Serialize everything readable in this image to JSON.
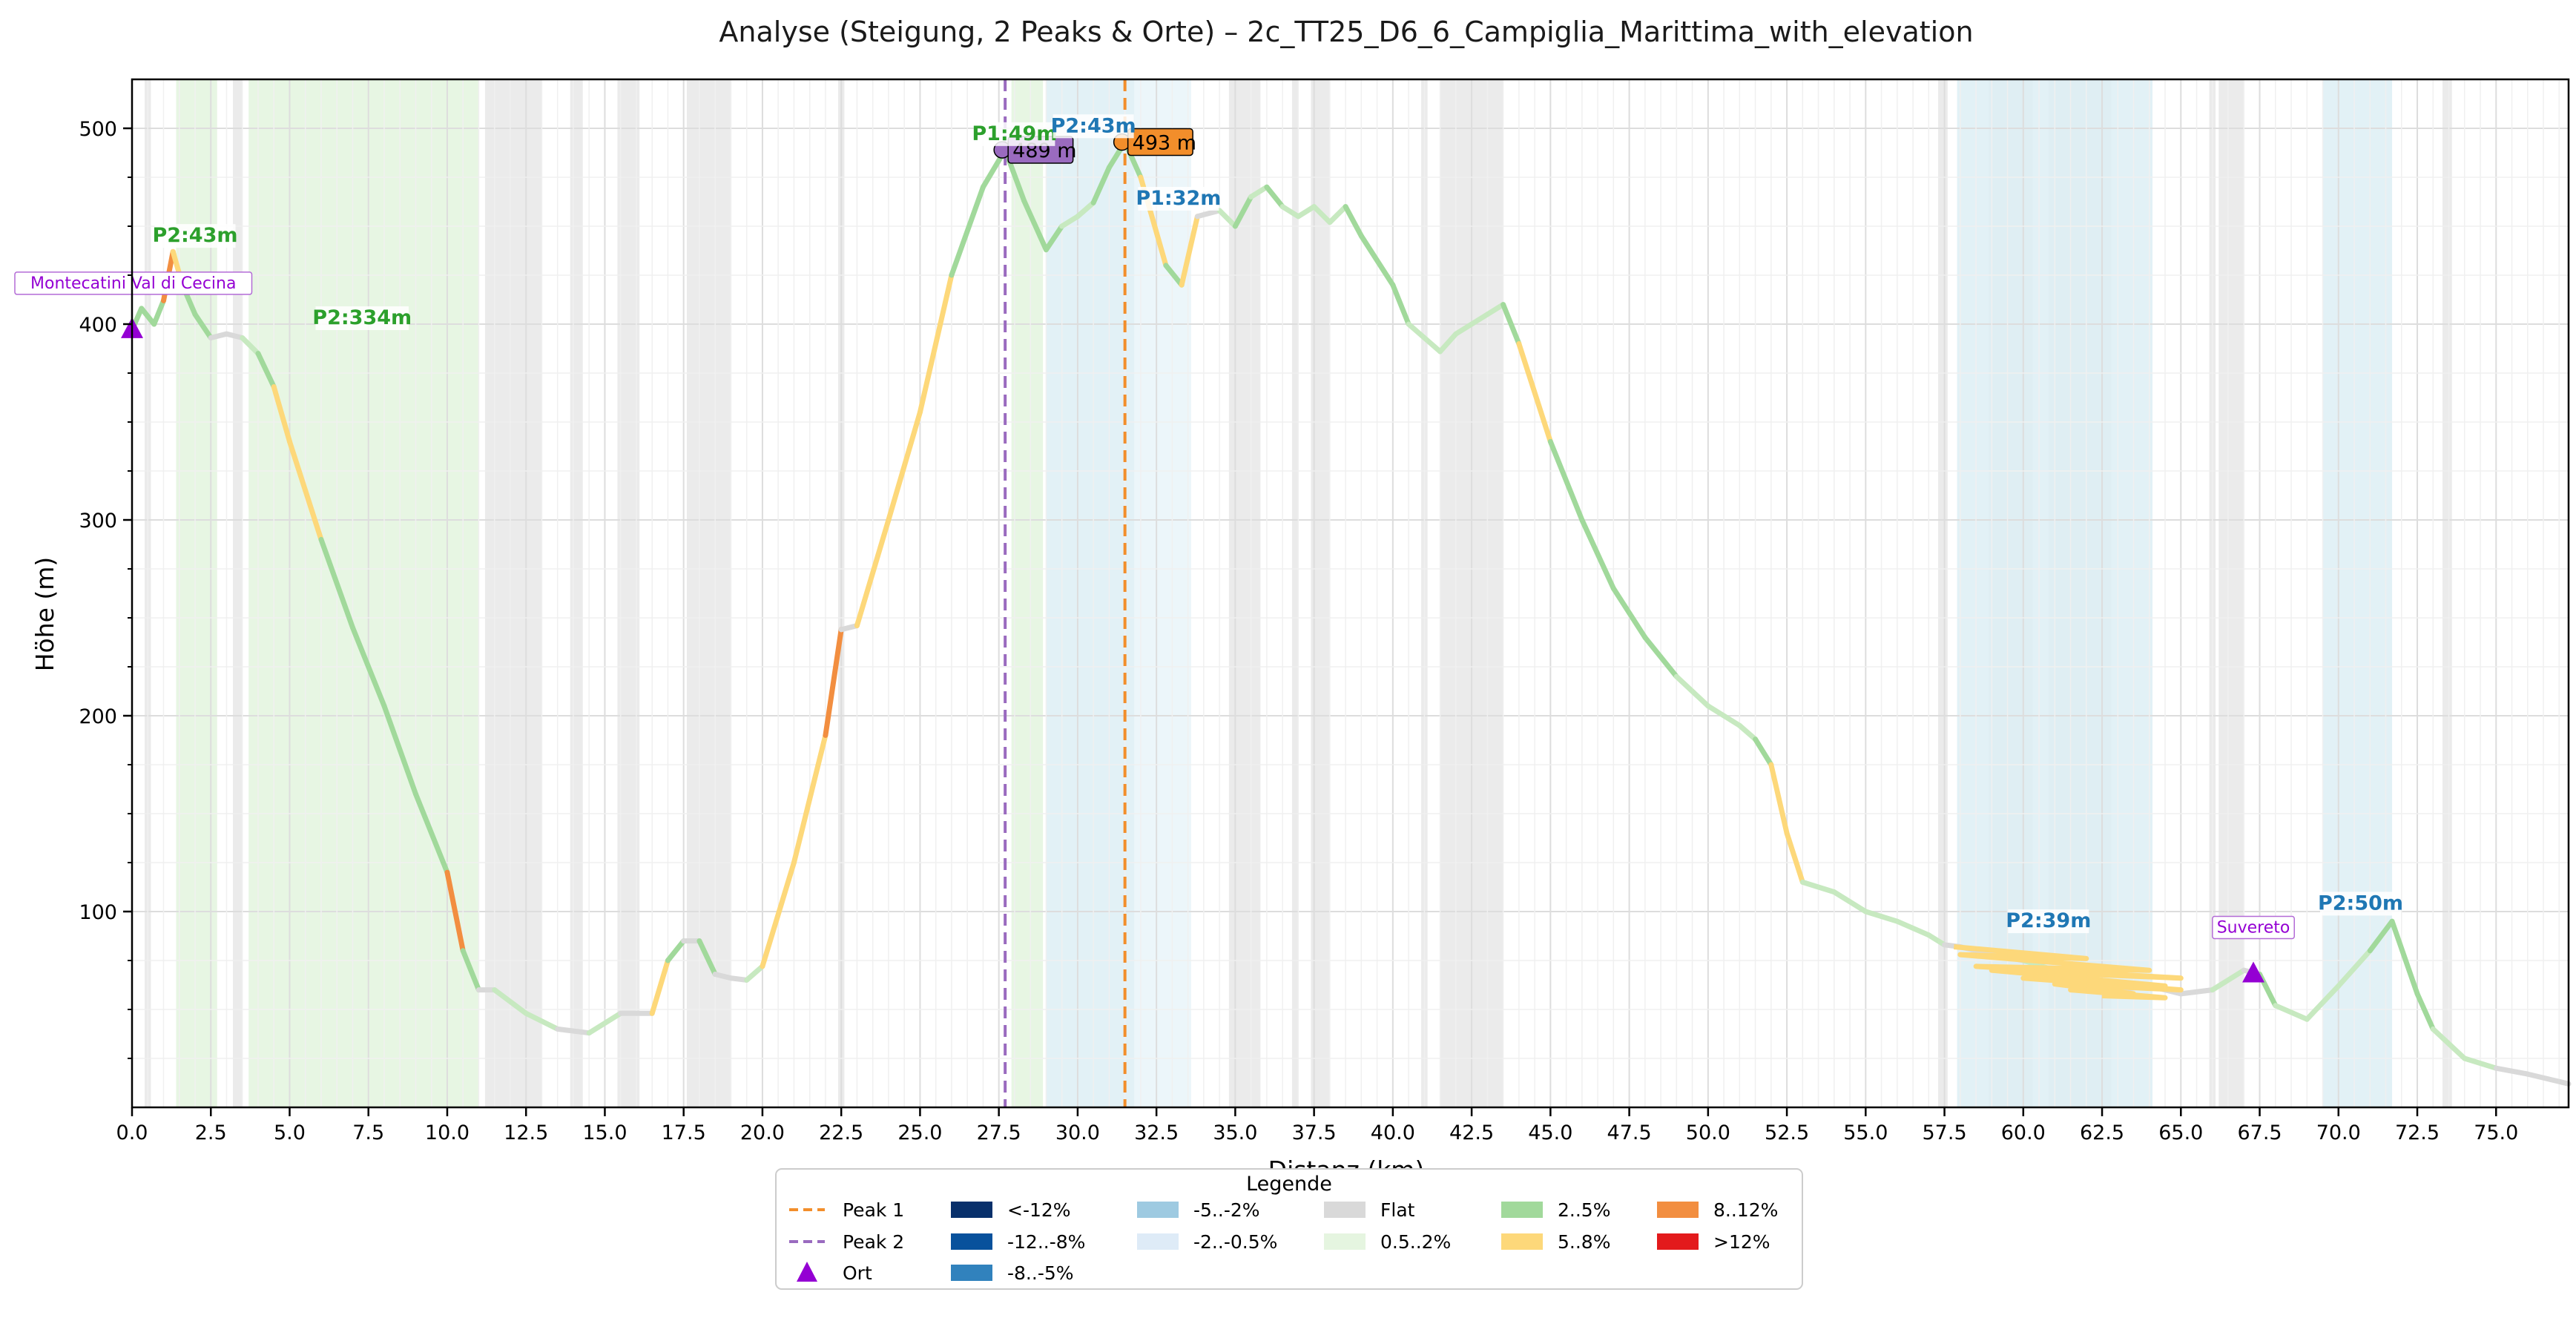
{
  "chart_data": {
    "type": "line",
    "title": "Analyse (Steigung, 2 Peaks & Orte) – 2c_TT25_D6_6_Campiglia_Marittima_with_elevation",
    "xlabel": "Distanz (km)",
    "ylabel": "Höhe (m)",
    "xlim": [
      0,
      77.3
    ],
    "ylim": [
      0,
      525
    ],
    "grid": true,
    "x_ticks": [
      "0.0",
      "2.5",
      "5.0",
      "7.5",
      "10.0",
      "12.5",
      "15.0",
      "17.5",
      "20.0",
      "22.5",
      "25.0",
      "27.5",
      "30.0",
      "32.5",
      "35.0",
      "37.5",
      "40.0",
      "42.5",
      "45.0",
      "47.5",
      "50.0",
      "52.5",
      "55.0",
      "57.5",
      "60.0",
      "62.5",
      "65.0",
      "67.5",
      "70.0",
      "72.5",
      "75.0"
    ],
    "y_ticks": [
      "100",
      "200",
      "300",
      "400",
      "500"
    ],
    "profile": {
      "x": [
        0,
        0.3,
        0.7,
        1.0,
        1.3,
        1.6,
        2.0,
        2.5,
        3.0,
        3.5,
        4.0,
        4.5,
        5.0,
        5.5,
        6.0,
        7.0,
        8.0,
        9.0,
        10.0,
        10.5,
        11.0,
        11.5,
        12.5,
        13.5,
        14.5,
        15.5,
        16.5,
        17.0,
        17.5,
        18.0,
        18.5,
        19.0,
        19.5,
        20.0,
        21.0,
        22.0,
        22.5,
        23.0,
        24.0,
        25.0,
        26.0,
        27.0,
        27.7,
        28.3,
        29.0,
        29.5,
        30.0,
        30.5,
        31.0,
        31.5,
        32.0,
        32.8,
        33.3,
        33.8,
        34.5,
        35.0,
        35.5,
        36.0,
        36.5,
        37.0,
        37.5,
        38.0,
        38.5,
        39.0,
        40.0,
        40.5,
        41.5,
        42.0,
        43.0,
        43.5,
        44.0,
        45.0,
        46.0,
        47.0,
        48.0,
        49.0,
        50.0,
        51.0,
        51.5,
        52.0,
        52.5,
        53.0,
        54.0,
        55.0,
        56.0,
        57.0,
        57.5,
        58.0,
        59.0,
        60.0,
        61.0,
        62.0,
        63.0,
        64.0,
        65.0,
        66.0,
        67.0,
        67.5,
        68.0,
        69.0,
        70.0,
        71.0,
        71.7,
        72.5,
        73.0,
        74.0,
        75.0,
        76.0,
        77.3
      ],
      "y": [
        397,
        408,
        400,
        412,
        437,
        420,
        405,
        393,
        395,
        393,
        385,
        368,
        340,
        315,
        290,
        245,
        205,
        160,
        120,
        80,
        60,
        60,
        48,
        40,
        38,
        48,
        48,
        75,
        85,
        85,
        68,
        66,
        65,
        72,
        125,
        190,
        244,
        246,
        300,
        355,
        425,
        470,
        489,
        463,
        438,
        450,
        455,
        462,
        480,
        493,
        475,
        430,
        420,
        455,
        458,
        450,
        465,
        470,
        460,
        455,
        460,
        452,
        460,
        445,
        420,
        400,
        386,
        395,
        405,
        410,
        390,
        340,
        300,
        265,
        240,
        220,
        205,
        195,
        188,
        175,
        140,
        115,
        110,
        100,
        95,
        88,
        83,
        82,
        78,
        75,
        70,
        63,
        60,
        62,
        58,
        60,
        70,
        68,
        52,
        45,
        62,
        80,
        95,
        58,
        40,
        25,
        20,
        17,
        12
      ]
    },
    "peaks": [
      {
        "name": "Peak 1",
        "x": 31.5,
        "label": "493 m",
        "color": "#f28e2b"
      },
      {
        "name": "Peak 2",
        "x": 27.7,
        "label": "489 m",
        "color": "#9a6bbf"
      }
    ],
    "places": [
      {
        "name": "Montecatini Val di Cecina",
        "x": 0,
        "y": 397
      },
      {
        "name": "Suvereto",
        "x": 67.3,
        "y": 68
      }
    ],
    "segment_labels": [
      {
        "text": "P2:43m",
        "x": 2.0,
        "y": 442,
        "color": "#2ca02c"
      },
      {
        "text": "P2:334m",
        "x": 7.3,
        "y": 400,
        "color": "#2ca02c"
      },
      {
        "text": "P1:49m",
        "x": 28.0,
        "y": 494,
        "color": "#2ca02c"
      },
      {
        "text": "P2:43m",
        "x": 30.5,
        "y": 498,
        "color": "#1f77b4"
      },
      {
        "text": "P1:32m",
        "x": 33.2,
        "y": 461,
        "color": "#1f77b4"
      },
      {
        "text": "P2:39m",
        "x": 60.8,
        "y": 92,
        "color": "#1f77b4"
      },
      {
        "text": "P2:50m",
        "x": 70.7,
        "y": 101,
        "color": "#1f77b4"
      }
    ],
    "climb_regions": [
      {
        "x0": 1.4,
        "x1": 2.7,
        "color": "#e3f4de"
      },
      {
        "x0": 3.7,
        "x1": 11.0,
        "color": "#e3f4de"
      },
      {
        "x0": 27.9,
        "x1": 28.9,
        "color": "#e3f4de"
      },
      {
        "x0": 29.0,
        "x1": 31.8,
        "color": "#ddeef5"
      },
      {
        "x0": 31.8,
        "x1": 33.6,
        "color": "#e9f5f9"
      },
      {
        "x0": 57.9,
        "x1": 64.1,
        "color": "#ddeef5"
      },
      {
        "x0": 69.5,
        "x1": 71.7,
        "color": "#ddeef5"
      }
    ],
    "flat_regions": [
      [
        0.4,
        0.6
      ],
      [
        3.2,
        3.5
      ],
      [
        11.2,
        13.0
      ],
      [
        13.9,
        14.3
      ],
      [
        15.4,
        16.1
      ],
      [
        17.6,
        19.0
      ],
      [
        22.4,
        22.6
      ],
      [
        34.8,
        35.8
      ],
      [
        36.8,
        37.0
      ],
      [
        37.4,
        38.0
      ],
      [
        40.9,
        41.1
      ],
      [
        41.5,
        43.5
      ],
      [
        57.3,
        57.6
      ],
      [
        58.9,
        60.3
      ],
      [
        60.8,
        62.8
      ],
      [
        65.9,
        66.1
      ],
      [
        66.2,
        67.0
      ],
      [
        73.3,
        73.6
      ]
    ],
    "legend": {
      "title": "Legende",
      "placement": "bottom-center",
      "entries": [
        {
          "label": "Peak 1",
          "type": "dashed",
          "color": "#f28e2b"
        },
        {
          "label": "Peak 2",
          "type": "dashed",
          "color": "#9a6bbf"
        },
        {
          "label": "Ort",
          "type": "triangle",
          "color": "#9400d3"
        },
        {
          "label": "<-12%",
          "type": "patch",
          "color": "#08306b"
        },
        {
          "label": "-12..-8%",
          "type": "patch",
          "color": "#08519c"
        },
        {
          "label": "-8..-5%",
          "type": "patch",
          "color": "#3182bd"
        },
        {
          "label": "-5..-2%",
          "type": "patch",
          "color": "#9ecae1"
        },
        {
          "label": "-2..-0.5%",
          "type": "patch",
          "color": "#deebf7"
        },
        {
          "label": "Flat",
          "type": "patch",
          "color": "#d9d9d9"
        },
        {
          "label": "0.5..2%",
          "type": "patch",
          "color": "#e5f5e0"
        },
        {
          "label": "2..5%",
          "type": "patch",
          "color": "#a1d99b"
        },
        {
          "label": "5..8%",
          "type": "patch",
          "color": "#fdd87a"
        },
        {
          "label": "8..12%",
          "type": "patch",
          "color": "#f28e40"
        },
        {
          "label": ">12%",
          "type": "patch",
          "color": "#e31a1c"
        }
      ]
    }
  }
}
